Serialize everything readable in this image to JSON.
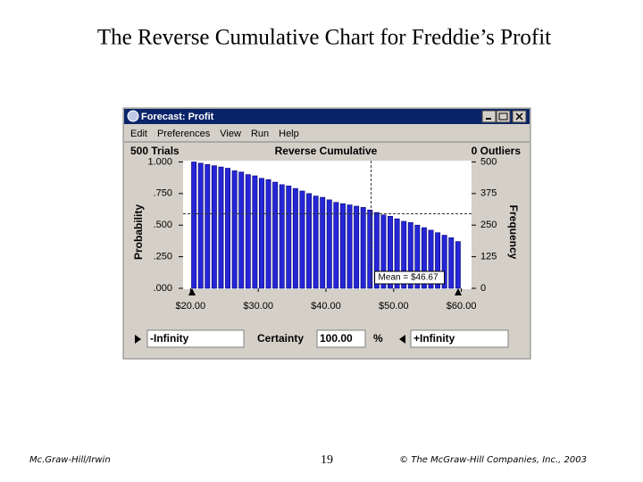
{
  "slide_title": "The Reverse Cumulative Chart for Freddie’s Profit",
  "footer": {
    "left": "Mc.Graw-Hill/Irwin",
    "page": "19",
    "right": "© The McGraw-Hill Companies, Inc., 2003"
  },
  "window": {
    "title": "Forecast: Profit",
    "menu": [
      "Edit",
      "Preferences",
      "View",
      "Run",
      "Help"
    ],
    "trials": "500 Trials",
    "outliers": "0 Outliers",
    "lower": "-Infinity",
    "certainty_label": "Certainty",
    "certainty_value": "100.00",
    "percent": "%",
    "upper": "+Infinity"
  },
  "chart_data": {
    "type": "bar",
    "title": "Reverse Cumulative",
    "y_label": "Probability",
    "y2_label": "Frequency",
    "color": "#2626d8",
    "x": [
      20.5,
      21.5,
      22.5,
      23.5,
      24.5,
      25.5,
      26.5,
      27.5,
      28.5,
      29.5,
      30.5,
      31.5,
      32.5,
      33.5,
      34.5,
      35.5,
      36.5,
      37.5,
      38.5,
      39.5,
      40.5,
      41.5,
      42.5,
      43.5,
      44.5,
      45.5,
      46.5,
      47.5,
      48.5,
      49.5,
      50.5,
      51.5,
      52.5,
      53.5,
      54.5,
      55.5,
      56.5,
      57.5,
      58.5,
      59.5
    ],
    "values": [
      1.0,
      0.99,
      0.98,
      0.97,
      0.96,
      0.95,
      0.93,
      0.92,
      0.9,
      0.89,
      0.87,
      0.86,
      0.84,
      0.82,
      0.81,
      0.79,
      0.77,
      0.75,
      0.73,
      0.72,
      0.7,
      0.68,
      0.67,
      0.66,
      0.65,
      0.64,
      0.62,
      0.6,
      0.58,
      0.57,
      0.55,
      0.53,
      0.52,
      0.5,
      0.48,
      0.46,
      0.44,
      0.42,
      0.4,
      0.37
    ],
    "xlim": [
      18.9,
      61.5
    ],
    "xticks": [
      {
        "value": 20,
        "label": "$20.00"
      },
      {
        "value": 30,
        "label": "$30.00"
      },
      {
        "value": 40,
        "label": "$40.00"
      },
      {
        "value": 50,
        "label": "$50.00"
      },
      {
        "value": 60,
        "label": "$60.00"
      }
    ],
    "ylim": [
      0,
      1.01
    ],
    "yticks": [
      {
        "value": 0,
        "label": ".000"
      },
      {
        "value": 0.25,
        "label": ".250"
      },
      {
        "value": 0.5,
        "label": ".500"
      },
      {
        "value": 0.75,
        "label": ".750"
      },
      {
        "value": 1,
        "label": "1.000"
      }
    ],
    "y2lim": [
      0,
      505
    ],
    "y2ticks": [
      0,
      125,
      250,
      375,
      500
    ],
    "mean": 46.67,
    "mean_label": "Mean = $46.67",
    "mean_probability": 0.59
  }
}
